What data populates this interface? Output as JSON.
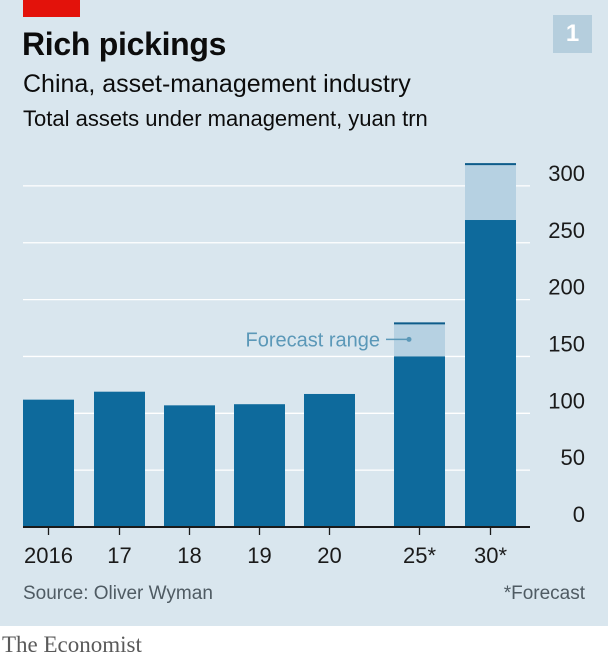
{
  "header": {
    "badge": "1",
    "title": "Rich pickings",
    "subtitle": "China, asset-management industry",
    "unit_label": "Total assets under management, yuan trn"
  },
  "footer": {
    "source": "Source: Oliver Wyman",
    "footnote": "*Forecast",
    "brand": "The Economist"
  },
  "colors": {
    "background": "#d9e6ee",
    "bar": "#0e6a9c",
    "forecast_range": "#b6d1e2",
    "forecast_top_line": "#0e5c8a",
    "gridline": "#ffffff",
    "annotation": "#5b98b8",
    "brand_red": "#e3120b"
  },
  "chart_data": {
    "type": "bar",
    "categories": [
      "2016",
      "17",
      "18",
      "19",
      "20",
      "25*",
      "30*"
    ],
    "values": [
      112,
      119,
      107,
      108,
      117,
      150,
      270
    ],
    "forecast_range_top": [
      null,
      null,
      null,
      null,
      null,
      180,
      320
    ],
    "y_ticks": [
      0,
      50,
      100,
      150,
      200,
      250,
      300
    ],
    "ylim": [
      0,
      320
    ],
    "y_axis_side": "right",
    "grid": true,
    "annotation": {
      "text": "Forecast range",
      "target_category": "25*"
    }
  }
}
